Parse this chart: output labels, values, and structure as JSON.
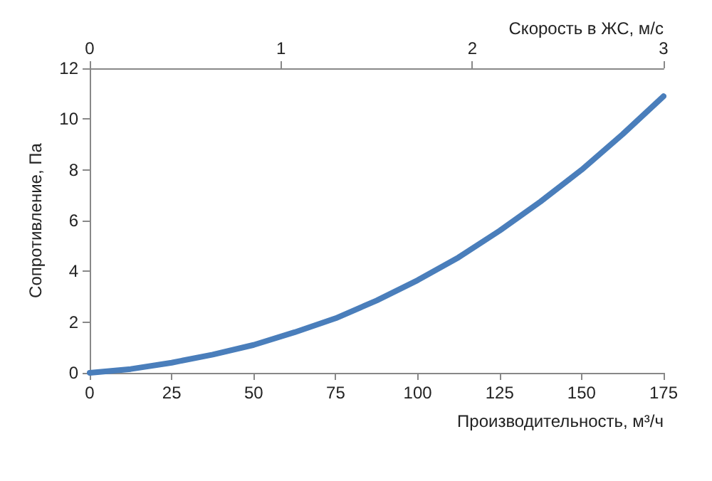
{
  "chart_data": {
    "type": "line",
    "xlabel": "Производительность, м³/ч",
    "ylabel": "Сопротивление, Па",
    "x2label": "Скорость в ЖС, м/с",
    "x": [
      0,
      12.5,
      25,
      37.5,
      50,
      62.5,
      75,
      87.5,
      100,
      112.5,
      125,
      137.5,
      150,
      162.5,
      175
    ],
    "series": [
      {
        "color": "#4a7ebb",
        "values": [
          0,
          0.15,
          0.4,
          0.72,
          1.1,
          1.6,
          2.15,
          2.85,
          3.65,
          4.55,
          5.6,
          6.75,
          8.0,
          9.4,
          10.9
        ]
      }
    ],
    "xlim": [
      0,
      175
    ],
    "xticks": [
      0,
      25,
      50,
      75,
      100,
      125,
      150,
      175
    ],
    "ylim": [
      0,
      12
    ],
    "yticks": [
      0,
      2,
      4,
      6,
      8,
      10,
      12
    ],
    "x2lim": [
      0,
      3
    ],
    "x2ticks": [
      0,
      1,
      2,
      3
    ],
    "grid": false,
    "marker": "none",
    "line_style": "solid"
  }
}
